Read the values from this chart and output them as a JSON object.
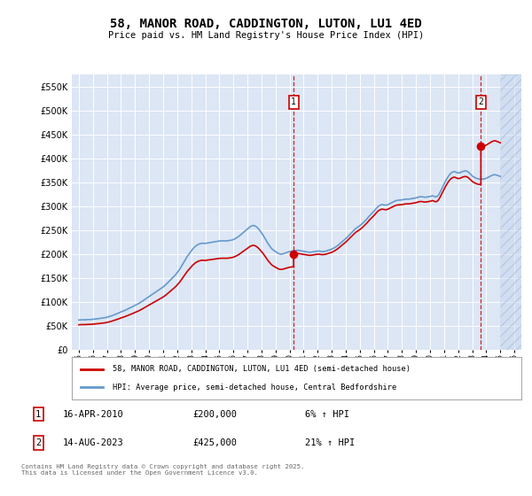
{
  "title": "58, MANOR ROAD, CADDINGTON, LUTON, LU1 4ED",
  "subtitle": "Price paid vs. HM Land Registry's House Price Index (HPI)",
  "bg_color": "#dce6f5",
  "red_color": "#cc0000",
  "blue_color": "#6699cc",
  "marker1_date": 2010.29,
  "marker2_date": 2023.62,
  "marker1_price": 200000,
  "marker2_price": 425000,
  "note1_date": "16-APR-2010",
  "note1_price": "£200,000",
  "note1_hpi": "6% ↑ HPI",
  "note2_date": "14-AUG-2023",
  "note2_price": "£425,000",
  "note2_hpi": "21% ↑ HPI",
  "legend1": "58, MANOR ROAD, CADDINGTON, LUTON, LU1 4ED (semi-detached house)",
  "legend2": "HPI: Average price, semi-detached house, Central Bedfordshire",
  "footnote": "Contains HM Land Registry data © Crown copyright and database right 2025.\nThis data is licensed under the Open Government Licence v3.0.",
  "ylim": [
    0,
    575000
  ],
  "yticks": [
    0,
    50000,
    100000,
    150000,
    200000,
    250000,
    300000,
    350000,
    400000,
    450000,
    500000,
    550000
  ],
  "xlim": [
    1994.5,
    2026.5
  ],
  "xticks": [
    1995,
    1996,
    1997,
    1998,
    1999,
    2000,
    2001,
    2002,
    2003,
    2004,
    2005,
    2006,
    2007,
    2008,
    2009,
    2010,
    2011,
    2012,
    2013,
    2014,
    2015,
    2016,
    2017,
    2018,
    2019,
    2020,
    2021,
    2022,
    2023,
    2024,
    2025,
    2026
  ],
  "hatch_start": 2025.0,
  "sale1_x": 1995.3,
  "sale1_price": 52500,
  "sale2_x": 2010.29,
  "sale2_price": 200000,
  "sale3_x": 2023.62,
  "sale3_price": 425000
}
